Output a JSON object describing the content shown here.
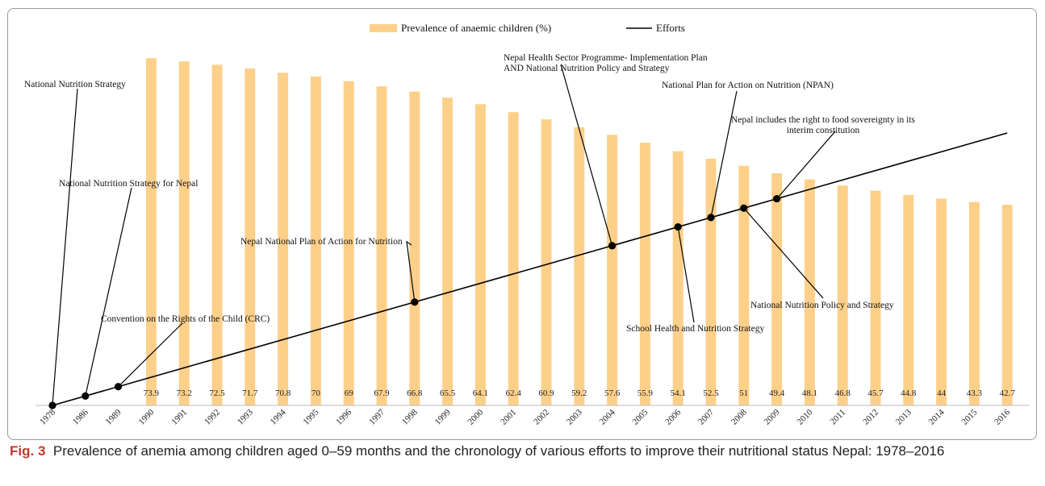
{
  "legend": {
    "bar_label": "Prevalence of anaemic children (%)",
    "line_label": "Efforts"
  },
  "caption": {
    "label": "Fig. 3",
    "text": "Prevalence of anemia among children aged 0–59 months and the chronology of various efforts to improve their nutritional status Nepal: 1978–2016"
  },
  "colors": {
    "bar": "#fdd08a",
    "line": "#000000",
    "text": "#111111"
  },
  "chart_data": {
    "type": "bar",
    "categories": [
      "1978",
      "1986",
      "1989",
      "1990",
      "1991",
      "1992",
      "1993",
      "1994",
      "1995",
      "1996",
      "1997",
      "1998",
      "1999",
      "2000",
      "2001",
      "2002",
      "2003",
      "2004",
      "2005",
      "2006",
      "2007",
      "2008",
      "2009",
      "2010",
      "2011",
      "2012",
      "2013",
      "2014",
      "2015",
      "2016"
    ],
    "series": [
      {
        "name": "Prevalence of anaemic children (%)",
        "type": "bar",
        "values": [
          null,
          null,
          null,
          73.9,
          73.2,
          72.5,
          71.7,
          70.8,
          70,
          69,
          67.9,
          66.8,
          65.5,
          64.1,
          62.4,
          60.9,
          59.2,
          57.6,
          55.9,
          54.1,
          52.5,
          51,
          49.4,
          48.1,
          46.8,
          45.7,
          44.8,
          44,
          43.3,
          42.7
        ],
        "labels": [
          "",
          "",
          "",
          "73.9",
          "73.2",
          "72.5",
          "71.7",
          "70.8",
          "70",
          "69",
          "67.9",
          "66.8",
          "65.5",
          "64.1",
          "62.4",
          "60.9",
          "59.2",
          "57.6",
          "55.9",
          "54.1",
          "52.5",
          "51",
          "49.4",
          "48.1",
          "46.8",
          "45.7",
          "44.8",
          "44",
          "43.3",
          "42.7"
        ]
      },
      {
        "name": "Efforts",
        "type": "line",
        "x_range": [
          "1978",
          "2016"
        ],
        "markers": [
          "1978",
          "1986",
          "1989",
          "1998",
          "2004",
          "2006",
          "2007",
          "2008",
          "2009"
        ]
      }
    ],
    "annotations": [
      {
        "text": "National Nutrition Strategy",
        "year": "1978"
      },
      {
        "text": "National Nutrition Strategy for Nepal",
        "year": "1986"
      },
      {
        "text": "Convention on the Rights of the Child (CRC)",
        "year": "1989"
      },
      {
        "text": "Nepal National Plan of Action for Nutrition",
        "year": "1998"
      },
      {
        "text": "Nepal Health Sector Programme- Implementation Plan",
        "text2": "AND National Nutrition Policy and Strategy",
        "year": "2004"
      },
      {
        "text": "School  Health and Nutrition Strategy",
        "year": "2006"
      },
      {
        "text": "National Plan for Action on Nutrition (NPAN)",
        "year": "2007"
      },
      {
        "text": "National Nutrition Policy and Strategy",
        "year": "2008"
      },
      {
        "text": "Nepal includes the right to food sovereignty in its",
        "text2": "interim constitution",
        "year": "2009"
      }
    ],
    "legend_position": "top-center",
    "grid": false,
    "ylim": [
      0,
      80
    ]
  }
}
